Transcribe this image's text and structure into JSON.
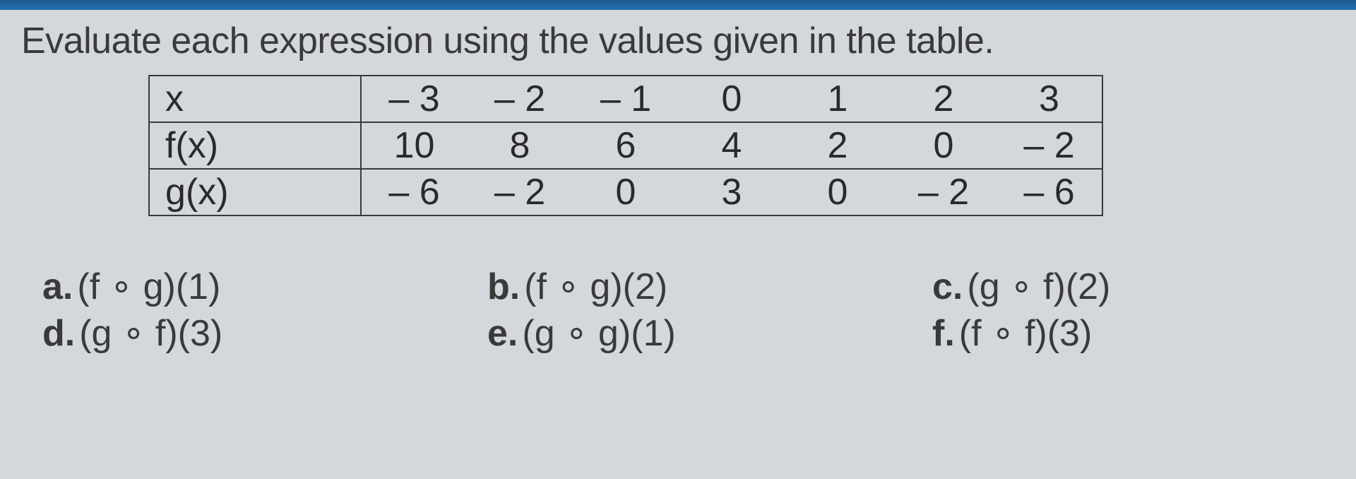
{
  "instruction": "Evaluate each expression using the values given in the table.",
  "table": {
    "border_color": "#3a3a3a",
    "text_color": "#2a2a2a",
    "background_color": "#d4d8dc",
    "font_size": 52,
    "rows": [
      {
        "label": "x",
        "values": [
          "– 3",
          "– 2",
          "– 1",
          "0",
          "1",
          "2",
          "3"
        ]
      },
      {
        "label": "f(x)",
        "values": [
          "10",
          "8",
          "6",
          "4",
          "2",
          "0",
          "– 2"
        ]
      },
      {
        "label": "g(x)",
        "values": [
          "– 6",
          "– 2",
          "0",
          "3",
          "0",
          "– 2",
          "– 6"
        ]
      }
    ]
  },
  "questions": {
    "a": {
      "label": "a.",
      "expr": "(f ∘ g)(1)"
    },
    "b": {
      "label": "b.",
      "expr": "(f ∘ g)(2)"
    },
    "c": {
      "label": "c.",
      "expr": "(g ∘ f)(2)"
    },
    "d": {
      "label": "d.",
      "expr": "(g ∘ f)(3)"
    },
    "e": {
      "label": "e.",
      "expr": "(g ∘ g)(1)"
    },
    "f": {
      "label": "f.",
      "expr": "(f ∘ f)(3)"
    }
  },
  "colors": {
    "page_background": "#d4d8dc",
    "top_bar": "#2270b0",
    "text": "#3a3a3a"
  }
}
